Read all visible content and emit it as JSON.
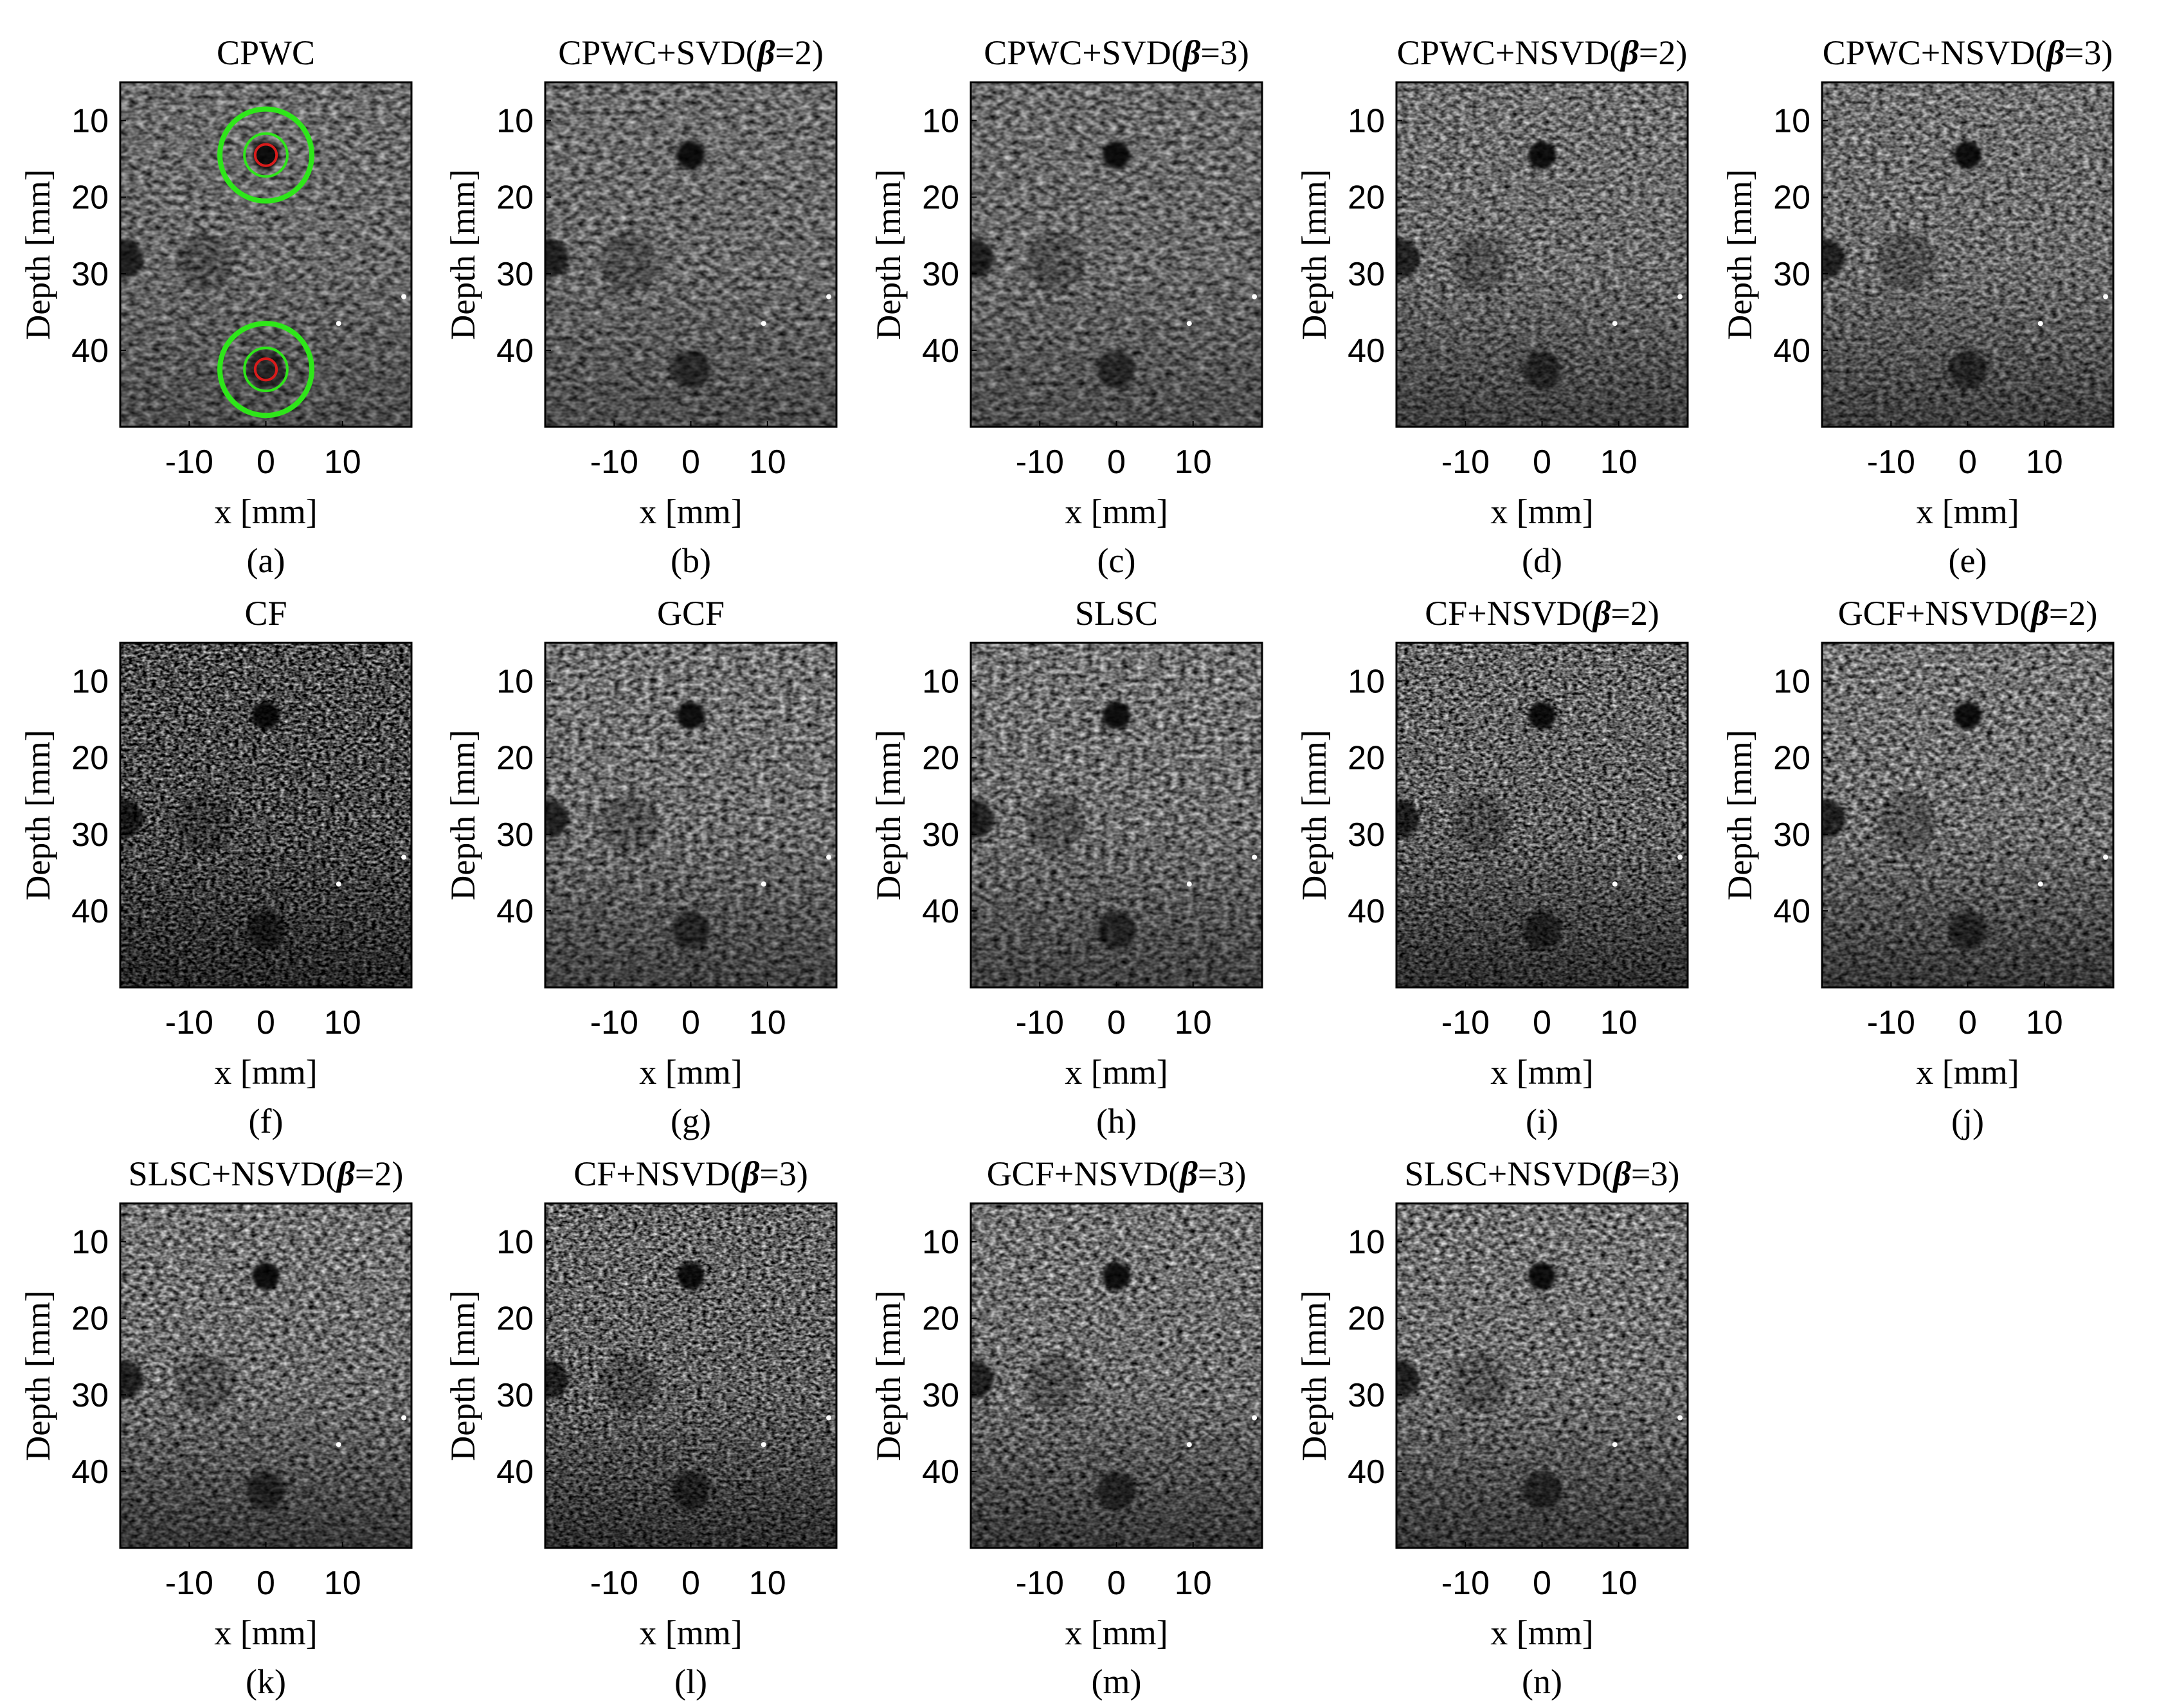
{
  "figure": {
    "x_axis_label": "x [mm]",
    "y_axis_label": "Depth [mm]",
    "x_ticks": [
      -10,
      0,
      10
    ],
    "y_ticks": [
      10,
      20,
      30,
      40
    ],
    "x_range_mm": [
      -19,
      19
    ],
    "depth_range_mm": [
      5,
      50
    ],
    "colors": {
      "roi_outer": "#2ee619",
      "roi_inner": "#d81b1b",
      "frame": "#000000",
      "background": "#ffffff"
    },
    "panels": [
      {
        "id": "a",
        "title": "CPWC",
        "sublabel": "(a)",
        "style": "cpwc",
        "roi": true
      },
      {
        "id": "b",
        "title": "CPWC+SVD(β=2)",
        "sublabel": "(b)",
        "style": "cpwc",
        "roi": false
      },
      {
        "id": "c",
        "title": "CPWC+SVD(β=3)",
        "sublabel": "(c)",
        "style": "cpwc",
        "roi": false
      },
      {
        "id": "d",
        "title": "CPWC+NSVD(β=2)",
        "sublabel": "(d)",
        "style": "nsvd",
        "roi": false
      },
      {
        "id": "e",
        "title": "CPWC+NSVD(β=3)",
        "sublabel": "(e)",
        "style": "nsvd",
        "roi": false
      },
      {
        "id": "f",
        "title": "CF",
        "sublabel": "(f)",
        "style": "cf",
        "roi": false
      },
      {
        "id": "g",
        "title": "GCF",
        "sublabel": "(g)",
        "style": "gcf",
        "roi": false
      },
      {
        "id": "h",
        "title": "SLSC",
        "sublabel": "(h)",
        "style": "gcf",
        "roi": false
      },
      {
        "id": "i",
        "title": "CF+NSVD(β=2)",
        "sublabel": "(i)",
        "style": "cfnsvd",
        "roi": false
      },
      {
        "id": "j",
        "title": "GCF+NSVD(β=2)",
        "sublabel": "(j)",
        "style": "gcfnsvd",
        "roi": false
      },
      {
        "id": "k",
        "title": "SLSC+NSVD(β=2)",
        "sublabel": "(k)",
        "style": "gcfnsvd",
        "roi": false
      },
      {
        "id": "l",
        "title": "CF+NSVD(β=3)",
        "sublabel": "(l)",
        "style": "cfnsvd",
        "roi": false
      },
      {
        "id": "m",
        "title": "GCF+NSVD(β=3)",
        "sublabel": "(m)",
        "style": "gcfnsvd",
        "roi": false
      },
      {
        "id": "n",
        "title": "SLSC+NSVD(β=3)",
        "sublabel": "(n)",
        "style": "gcfnsvd",
        "roi": false
      }
    ],
    "targets": {
      "anechoic_cysts": [
        {
          "x_mm": 0,
          "depth_mm": 14.5,
          "radius_mm": 1.8,
          "contrast": 0.12
        },
        {
          "x_mm": 0,
          "depth_mm": 42.5,
          "radius_mm": 2.5,
          "contrast": 0.45
        }
      ],
      "hypoechoic_lesions": [
        {
          "x_mm": -8,
          "depth_mm": 28.5,
          "radius_mm": 3.8,
          "contrast": 0.75
        }
      ],
      "edge_shadow": {
        "x_mm": -18.5,
        "depth_mm": 28,
        "radius_mm": 2.5
      },
      "point_targets": [
        {
          "x_mm": 9.5,
          "depth_mm": 36.5
        },
        {
          "x_mm": 18,
          "depth_mm": 33
        }
      ],
      "roi_rings_mm": {
        "inner_red": 1.4,
        "mid_green": 2.8,
        "outer_green": 6
      }
    }
  }
}
